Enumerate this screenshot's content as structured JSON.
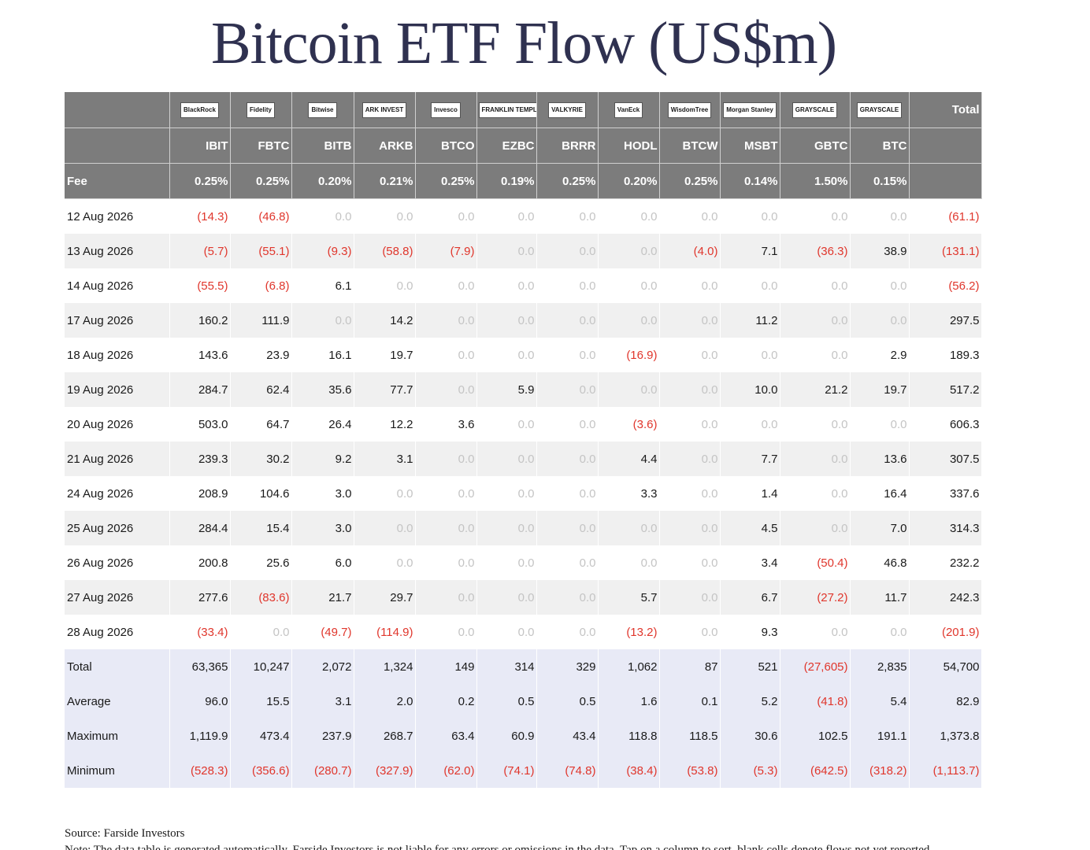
{
  "title": "Bitcoin ETF Flow (US$m)",
  "logos": [
    "BlackRock",
    "Fidelity",
    "Bitwise",
    "ARK INVEST",
    "Invesco",
    "FRANKLIN TEMPLETON",
    "VALKYRIE",
    "VanEck",
    "WisdomTree",
    "Morgan Stanley",
    "GRAYSCALE",
    "GRAYSCALE"
  ],
  "total_header": "Total",
  "tickers": [
    "IBIT",
    "FBTC",
    "BITB",
    "ARKB",
    "BTCO",
    "EZBC",
    "BRRR",
    "HODL",
    "BTCW",
    "MSBT",
    "GBTC",
    "BTC"
  ],
  "fee_label": "Fee",
  "fees": [
    "0.25%",
    "0.25%",
    "0.20%",
    "0.21%",
    "0.25%",
    "0.19%",
    "0.25%",
    "0.20%",
    "0.25%",
    "0.14%",
    "1.50%",
    "0.15%"
  ],
  "rows": [
    {
      "date": "12 Aug 2026",
      "values": [
        "(14.3)",
        "(46.8)",
        "0.0",
        "0.0",
        "0.0",
        "0.0",
        "0.0",
        "0.0",
        "0.0",
        "0.0",
        "0.0",
        "0.0"
      ],
      "total": "(61.1)"
    },
    {
      "date": "13 Aug 2026",
      "values": [
        "(5.7)",
        "(55.1)",
        "(9.3)",
        "(58.8)",
        "(7.9)",
        "0.0",
        "0.0",
        "0.0",
        "(4.0)",
        "7.1",
        "(36.3)",
        "38.9"
      ],
      "total": "(131.1)"
    },
    {
      "date": "14 Aug 2026",
      "values": [
        "(55.5)",
        "(6.8)",
        "6.1",
        "0.0",
        "0.0",
        "0.0",
        "0.0",
        "0.0",
        "0.0",
        "0.0",
        "0.0",
        "0.0"
      ],
      "total": "(56.2)"
    },
    {
      "date": "17 Aug 2026",
      "values": [
        "160.2",
        "111.9",
        "0.0",
        "14.2",
        "0.0",
        "0.0",
        "0.0",
        "0.0",
        "0.0",
        "11.2",
        "0.0",
        "0.0"
      ],
      "total": "297.5"
    },
    {
      "date": "18 Aug 2026",
      "values": [
        "143.6",
        "23.9",
        "16.1",
        "19.7",
        "0.0",
        "0.0",
        "0.0",
        "(16.9)",
        "0.0",
        "0.0",
        "0.0",
        "2.9"
      ],
      "total": "189.3"
    },
    {
      "date": "19 Aug 2026",
      "values": [
        "284.7",
        "62.4",
        "35.6",
        "77.7",
        "0.0",
        "5.9",
        "0.0",
        "0.0",
        "0.0",
        "10.0",
        "21.2",
        "19.7"
      ],
      "total": "517.2"
    },
    {
      "date": "20 Aug 2026",
      "values": [
        "503.0",
        "64.7",
        "26.4",
        "12.2",
        "3.6",
        "0.0",
        "0.0",
        "(3.6)",
        "0.0",
        "0.0",
        "0.0",
        "0.0"
      ],
      "total": "606.3"
    },
    {
      "date": "21 Aug 2026",
      "values": [
        "239.3",
        "30.2",
        "9.2",
        "3.1",
        "0.0",
        "0.0",
        "0.0",
        "4.4",
        "0.0",
        "7.7",
        "0.0",
        "13.6"
      ],
      "total": "307.5"
    },
    {
      "date": "24 Aug 2026",
      "values": [
        "208.9",
        "104.6",
        "3.0",
        "0.0",
        "0.0",
        "0.0",
        "0.0",
        "3.3",
        "0.0",
        "1.4",
        "0.0",
        "16.4"
      ],
      "total": "337.6"
    },
    {
      "date": "25 Aug 2026",
      "values": [
        "284.4",
        "15.4",
        "3.0",
        "0.0",
        "0.0",
        "0.0",
        "0.0",
        "0.0",
        "0.0",
        "4.5",
        "0.0",
        "7.0"
      ],
      "total": "314.3"
    },
    {
      "date": "26 Aug 2026",
      "values": [
        "200.8",
        "25.6",
        "6.0",
        "0.0",
        "0.0",
        "0.0",
        "0.0",
        "0.0",
        "0.0",
        "3.4",
        "(50.4)",
        "46.8"
      ],
      "total": "232.2"
    },
    {
      "date": "27 Aug 2026",
      "values": [
        "277.6",
        "(83.6)",
        "21.7",
        "29.7",
        "0.0",
        "0.0",
        "0.0",
        "5.7",
        "0.0",
        "6.7",
        "(27.2)",
        "11.7"
      ],
      "total": "242.3"
    },
    {
      "date": "28 Aug 2026",
      "values": [
        "(33.4)",
        "0.0",
        "(49.7)",
        "(114.9)",
        "0.0",
        "0.0",
        "0.0",
        "(13.2)",
        "0.0",
        "9.3",
        "0.0",
        "0.0"
      ],
      "total": "(201.9)"
    }
  ],
  "stats": [
    {
      "label": "Total",
      "values": [
        "63,365",
        "10,247",
        "2,072",
        "1,324",
        "149",
        "314",
        "329",
        "1,062",
        "87",
        "521",
        "(27,605)",
        "2,835"
      ],
      "total": "54,700"
    },
    {
      "label": "Average",
      "values": [
        "96.0",
        "15.5",
        "3.1",
        "2.0",
        "0.2",
        "0.5",
        "0.5",
        "1.6",
        "0.1",
        "5.2",
        "(41.8)",
        "5.4"
      ],
      "total": "82.9"
    },
    {
      "label": "Maximum",
      "values": [
        "1,119.9",
        "473.4",
        "237.9",
        "268.7",
        "63.4",
        "60.9",
        "43.4",
        "118.8",
        "118.5",
        "30.6",
        "102.5",
        "191.1"
      ],
      "total": "1,373.8"
    },
    {
      "label": "Minimum",
      "values": [
        "(528.3)",
        "(356.6)",
        "(280.7)",
        "(327.9)",
        "(62.0)",
        "(74.1)",
        "(74.8)",
        "(38.4)",
        "(53.8)",
        "(5.3)",
        "(642.5)",
        "(318.2)"
      ],
      "total": "(1,113.7)"
    }
  ],
  "source": "Source: Farside Investors",
  "note": "Note: The data table is generated automatically. Farside Investors is not liable for any errors or omissions in the data. Tap on a column to sort, blank cells denote flows not yet reported."
}
